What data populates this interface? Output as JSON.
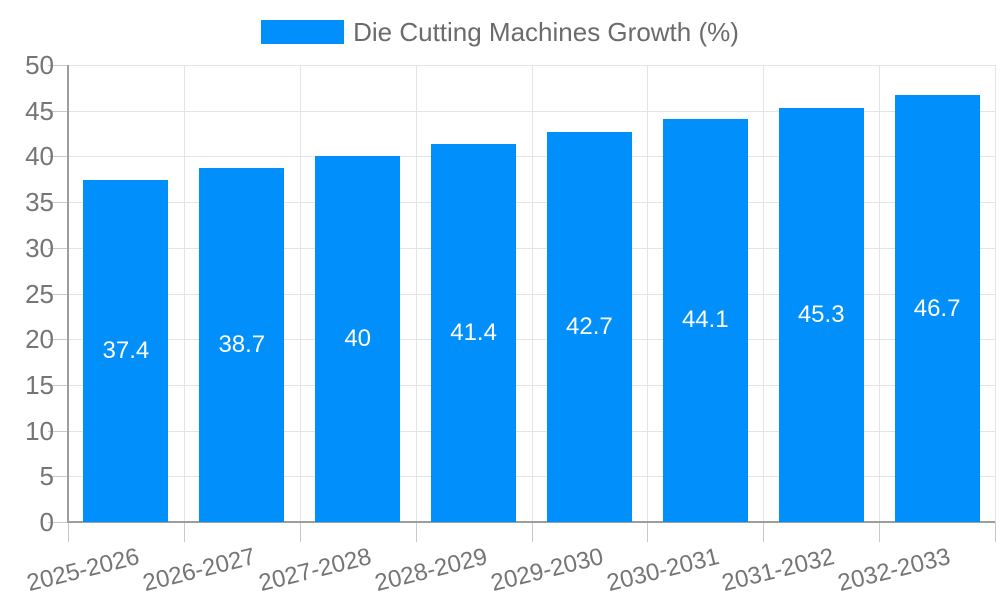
{
  "chart_data": {
    "type": "bar",
    "title": "Die Cutting Machines Growth (%)",
    "legend": {
      "label": "Die Cutting Machines Growth (%)",
      "position": "top"
    },
    "categories": [
      "2025-2026",
      "2026-2027",
      "2027-2028",
      "2028-2029",
      "2029-2030",
      "2030-2031",
      "2031-2032",
      "2032-2033"
    ],
    "series": [
      {
        "name": "Die Cutting Machines Growth (%)",
        "values": [
          37.4,
          38.7,
          40,
          41.4,
          42.7,
          44.1,
          45.3,
          46.7
        ]
      }
    ],
    "value_labels": [
      "37.4",
      "38.7",
      "40",
      "41.4",
      "42.7",
      "44.1",
      "45.3",
      "46.7"
    ],
    "xlabel": "",
    "ylabel": "",
    "ylim": [
      0,
      50
    ],
    "yticks": [
      0,
      5,
      10,
      15,
      20,
      25,
      30,
      35,
      40,
      45,
      50
    ],
    "grid": "on",
    "legend_position": "top-center",
    "colors": {
      "bar": "#008FFB",
      "grid": "#e4e4e4",
      "axis": "#9e9e9e",
      "tick": "#c9c9c9",
      "tick_label": "#757575",
      "legend_text": "#6b6b6b",
      "value_label": "#ffffff",
      "background": "#ffffff"
    }
  }
}
